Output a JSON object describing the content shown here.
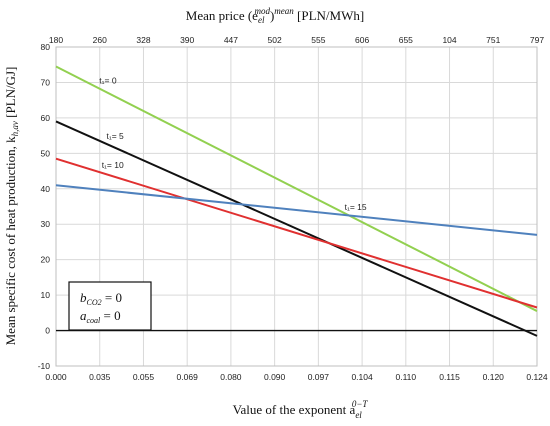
{
  "chart_data": {
    "type": "line",
    "x": [
      0,
      0.124
    ],
    "xlabel": "Value of the exponent a",
    "xlabel_sub": "el",
    "xlabel_sup": "0−T",
    "x_tick_labels": [
      "0.000",
      "0.035",
      "0.055",
      "0.069",
      "0.080",
      "0.090",
      "0.097",
      "0.104",
      "0.110",
      "0.115",
      "0.120",
      "0.124"
    ],
    "top_axis_label": "Mean price (e",
    "top_axis_label_sub": "el",
    "top_axis_label_sup": "mod",
    "top_axis_label_mid": ")",
    "top_axis_label_sup2": "mean",
    "top_axis_label_unit": " [PLN/MWh]",
    "top_tick_labels": [
      "180",
      "260",
      "328",
      "390",
      "447",
      "502",
      "555",
      "606",
      "655",
      "104",
      "751",
      "797"
    ],
    "ylabel": "Mean specific cost of heat production, k",
    "ylabel_sub": "h,av",
    "ylabel_unit": " [PLN/GJ]",
    "y_tick_labels": [
      "-10",
      "0",
      "10",
      "20",
      "30",
      "40",
      "50",
      "60",
      "70",
      "80"
    ],
    "ylim": [
      -10,
      80
    ],
    "grid": true,
    "series": [
      {
        "name": "t₁= 0",
        "color": "#92d050",
        "values": [
          74.5,
          5.5
        ]
      },
      {
        "name": "t₁= 5",
        "color": "#111111",
        "values": [
          59,
          -1.5
        ]
      },
      {
        "name": "t₁= 10",
        "color": "#e03030",
        "values": [
          48.5,
          6.5
        ]
      },
      {
        "name": "t₁= 15",
        "color": "#4f81bd",
        "values": [
          41,
          27
        ]
      }
    ],
    "annotation": {
      "line1": "b",
      "line1_sub": "CO2",
      "line1_val": " = 0",
      "line2": "a",
      "line2_sub": "coal",
      "line2_val": " = 0"
    }
  }
}
